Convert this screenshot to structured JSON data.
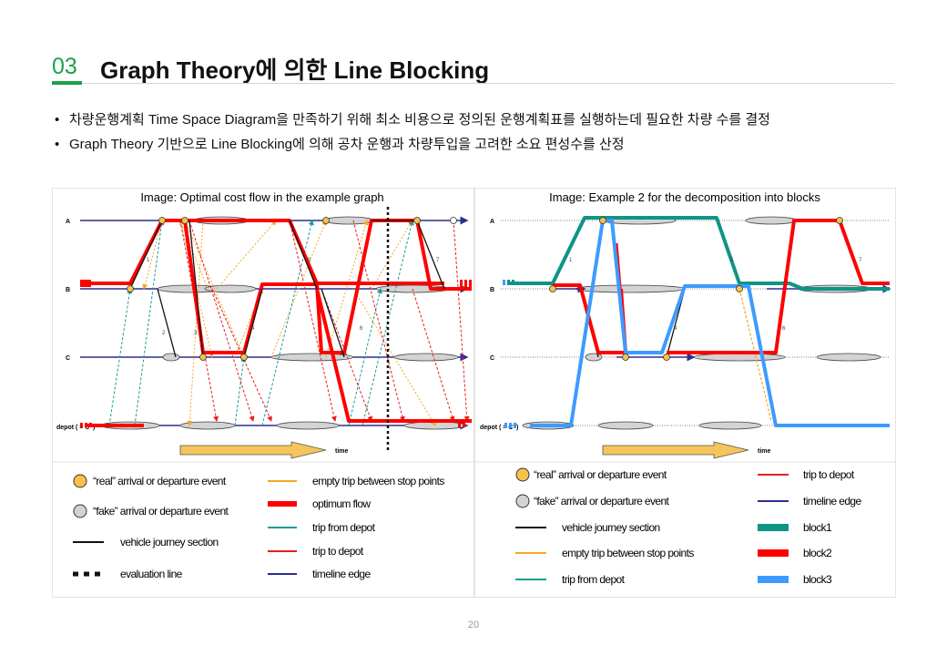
{
  "header": {
    "section_number": "03",
    "title": "Graph Theory에 의한 Line Blocking"
  },
  "bullets": [
    "차량운행계획 Time Space Diagram을 만족하기 위해 최소 비용으로 정의된 운행계획표를 실행하는데 필요한 차량 수를 결정",
    "Graph Theory 기반으로 Line Blocking에 의해 공차 운행과 차량투입을 고려한 소요 편성수를 산정"
  ],
  "left_figure": {
    "caption": "Image: Optimal cost flow in the example graph",
    "row_labels": [
      "A",
      "B",
      "C",
      "depot ( = C' )"
    ],
    "trip_numbers": [
      "1",
      "2",
      "3",
      "4",
      "5",
      "6",
      "7"
    ],
    "time_label": "time"
  },
  "right_figure": {
    "caption": "Image: Example 2 for the decomposition into blocks",
    "row_labels": [
      "A",
      "B",
      "C",
      "depot ( = C' )"
    ],
    "trip_numbers": [
      "1",
      "4",
      "5",
      "6",
      "7"
    ],
    "time_label": "time"
  },
  "left_legend": [
    {
      "symbol": "real-event",
      "label": "“real” arrival or departure event"
    },
    {
      "symbol": "fake-event",
      "label": "“fake” arrival or departure event"
    },
    {
      "symbol": "vehicle-journey",
      "label": "vehicle journey section"
    },
    {
      "symbol": "evaluation-line",
      "label": "evaluation line"
    },
    {
      "symbol": "empty-trip",
      "label": "empty trip between stop points"
    },
    {
      "symbol": "optimum-flow",
      "label": "optimum flow"
    },
    {
      "symbol": "trip-from-depot",
      "label": "trip from depot"
    },
    {
      "symbol": "trip-to-depot",
      "label": "trip to depot"
    },
    {
      "symbol": "timeline-edge",
      "label": "timeline edge"
    }
  ],
  "right_legend": [
    {
      "symbol": "real-event",
      "label": "“real” arrival or departure event"
    },
    {
      "symbol": "fake-event",
      "label": "“fake” arrival or departure event"
    },
    {
      "symbol": "vehicle-journey",
      "label": "vehicle journey section"
    },
    {
      "symbol": "empty-trip",
      "label": "empty trip between stop points"
    },
    {
      "symbol": "trip-from-depot",
      "label": "trip from depot"
    },
    {
      "symbol": "trip-to-depot",
      "label": "trip to depot"
    },
    {
      "symbol": "timeline-edge",
      "label": "timeline edge"
    },
    {
      "symbol": "block1",
      "label": "block1"
    },
    {
      "symbol": "block2",
      "label": "block2"
    },
    {
      "symbol": "block3",
      "label": "block3"
    }
  ],
  "colors": {
    "accent": "#1aa34a",
    "timeline": "#2b2f8f",
    "optimum_flow": "#ff0000",
    "empty_trip": "#f5a623",
    "trip_from_depot": "#1a9c9a",
    "trip_to_depot": "#e62020",
    "block1": "#0f9486",
    "block2": "#ff0000",
    "block3": "#3d9bff",
    "real_event": "#f7c24a",
    "fake_event": "#d3d3d3"
  },
  "footer": {
    "page_number": "20"
  }
}
